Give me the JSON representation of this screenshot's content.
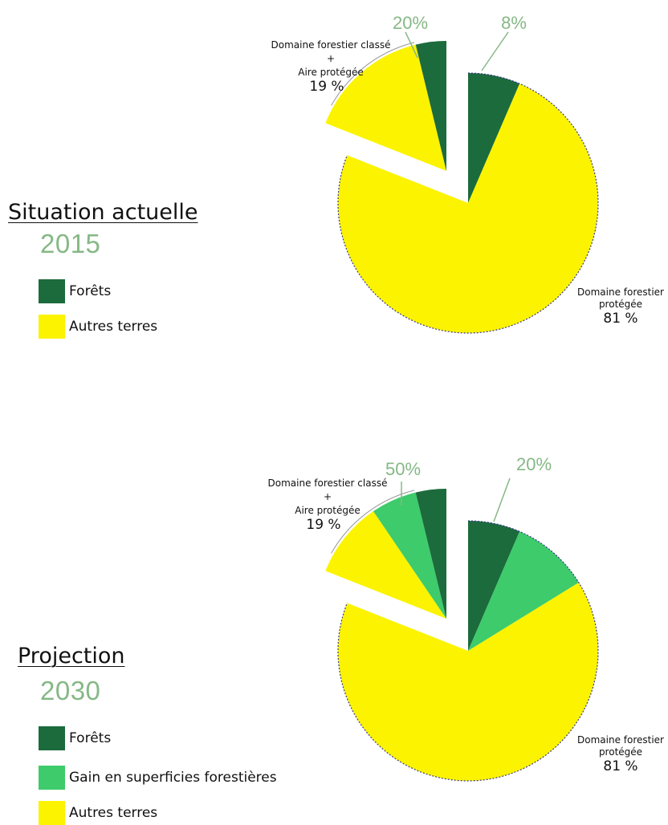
{
  "colors": {
    "forest": "#1c6b3c",
    "gain": "#3ecb6b",
    "other": "#fbf300",
    "accent": "#86b886",
    "outline": "#3a3a8a"
  },
  "chart_data": [
    {
      "type": "pie",
      "title": "Situation actuelle",
      "subtitle": "2015",
      "legend": [
        {
          "label": "Forêts",
          "color": "#1c6b3c"
        },
        {
          "label": "Autres terres",
          "color": "#fbf300"
        }
      ],
      "groups": [
        {
          "label_lines": [
            "Domaine forestier classé",
            "+",
            "Aire protégée"
          ],
          "percent_label": "19 %",
          "share": 19,
          "forest_label": "20%",
          "series": [
            {
              "category": "Forêts",
              "value": 20,
              "color": "#1c6b3c"
            },
            {
              "category": "Autres terres",
              "value": 80,
              "color": "#fbf300"
            }
          ]
        },
        {
          "label_lines": [
            "Domaine forestier",
            "protégée"
          ],
          "percent_label": "81 %",
          "share": 81,
          "forest_label": "8%",
          "series": [
            {
              "category": "Forêts",
              "value": 8,
              "color": "#1c6b3c"
            },
            {
              "category": "Autres terres",
              "value": 92,
              "color": "#fbf300"
            }
          ]
        }
      ]
    },
    {
      "type": "pie",
      "title": "Projection",
      "subtitle": "2030",
      "legend": [
        {
          "label": "Forêts",
          "color": "#1c6b3c"
        },
        {
          "label": "Gain en superficies forestières",
          "color": "#3ecb6b"
        },
        {
          "label": "Autres terres",
          "color": "#fbf300"
        }
      ],
      "groups": [
        {
          "label_lines": [
            "Domaine forestier classé",
            "+",
            "Aire protégée"
          ],
          "percent_label": "19 %",
          "share": 19,
          "forest_label": "50%",
          "series": [
            {
              "category": "Forêts",
              "value": 20,
              "color": "#1c6b3c"
            },
            {
              "category": "Gain en superficies forestières",
              "value": 30,
              "color": "#3ecb6b"
            },
            {
              "category": "Autres terres",
              "value": 50,
              "color": "#fbf300"
            }
          ]
        },
        {
          "label_lines": [
            "Domaine forestier",
            "protégée"
          ],
          "percent_label": "81 %",
          "share": 81,
          "forest_label": "20%",
          "series": [
            {
              "category": "Forêts",
              "value": 8,
              "color": "#1c6b3c"
            },
            {
              "category": "Gain en superficies forestières",
              "value": 12,
              "color": "#3ecb6b"
            },
            {
              "category": "Autres terres",
              "value": 80,
              "color": "#fbf300"
            }
          ]
        }
      ]
    }
  ]
}
